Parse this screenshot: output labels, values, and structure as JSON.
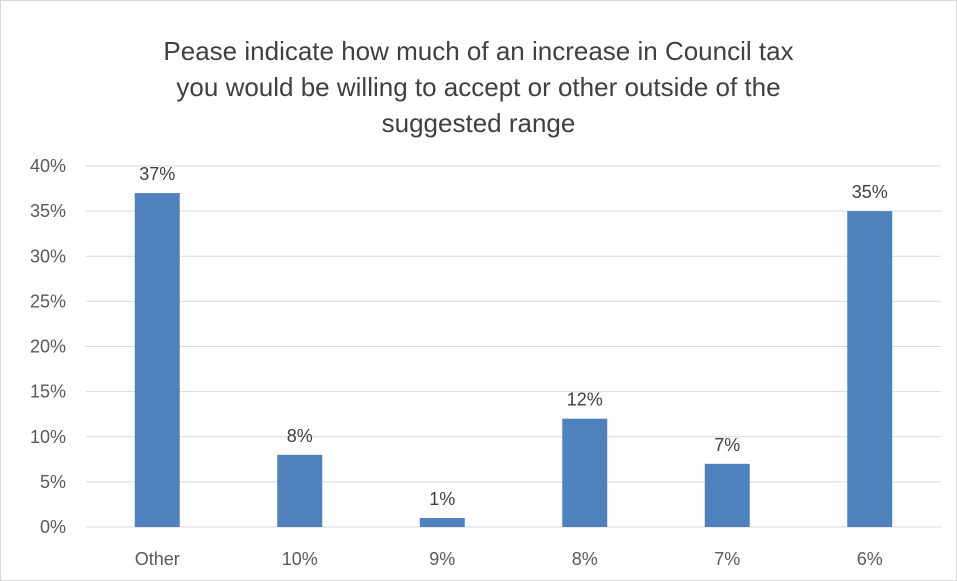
{
  "chart_data": {
    "type": "bar",
    "title_lines": [
      "Pease indicate how much of an increase in Council tax",
      "you would be willing to accept or other outside of the",
      "suggested range"
    ],
    "categories": [
      "Other",
      "10%",
      "9%",
      "8%",
      "7%",
      "6%"
    ],
    "values": [
      37,
      8,
      1,
      12,
      7,
      35
    ],
    "data_labels": [
      "37%",
      "8%",
      "1%",
      "12%",
      "7%",
      "35%"
    ],
    "y_ticks": [
      0,
      5,
      10,
      15,
      20,
      25,
      30,
      35,
      40
    ],
    "y_tick_labels": [
      "0%",
      "5%",
      "10%",
      "15%",
      "20%",
      "25%",
      "30%",
      "35%",
      "40%"
    ],
    "ylim": [
      0,
      40
    ],
    "xlabel": "",
    "ylabel": "",
    "grid": true,
    "legend": false,
    "bar_color": "#4f81bd",
    "grid_color": "#d9d9d9"
  }
}
